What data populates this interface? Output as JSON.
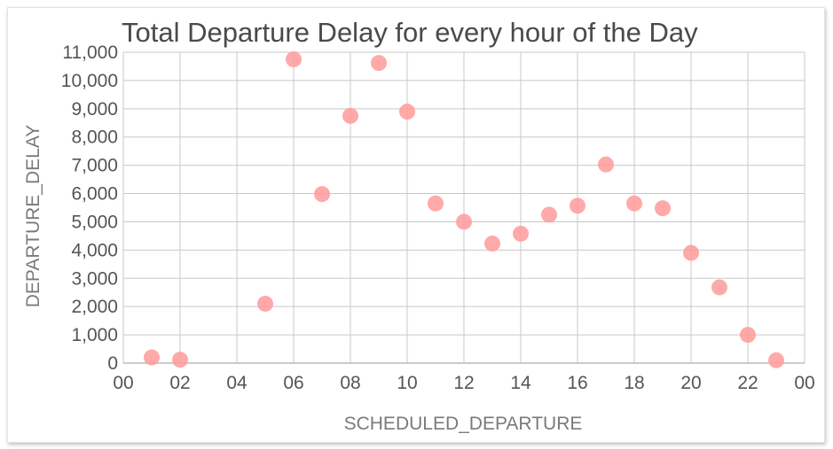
{
  "chart_data": {
    "type": "scatter",
    "title": "Total Departure Delay for every hour of the Day",
    "xlabel": "SCHEDULED_DEPARTURE",
    "ylabel": "DEPARTURE_DELAY",
    "xlim": [
      0,
      24
    ],
    "ylim": [
      0,
      11000
    ],
    "x_ticks": [
      "00",
      "02",
      "04",
      "06",
      "08",
      "10",
      "12",
      "14",
      "16",
      "18",
      "20",
      "22",
      "00"
    ],
    "y_ticks": [
      "0",
      "1,000",
      "2,000",
      "3,000",
      "4,000",
      "5,000",
      "6,000",
      "7,000",
      "8,000",
      "9,000",
      "10,000",
      "11,000"
    ],
    "grid": true,
    "marker_color": "#ff9a9a",
    "points": [
      {
        "x": 1,
        "y": 200
      },
      {
        "x": 2,
        "y": 120
      },
      {
        "x": 5,
        "y": 2100
      },
      {
        "x": 6,
        "y": 10750
      },
      {
        "x": 7,
        "y": 5980
      },
      {
        "x": 8,
        "y": 8750
      },
      {
        "x": 9,
        "y": 10620
      },
      {
        "x": 10,
        "y": 8900
      },
      {
        "x": 11,
        "y": 5650
      },
      {
        "x": 12,
        "y": 5000
      },
      {
        "x": 13,
        "y": 4230
      },
      {
        "x": 14,
        "y": 4580
      },
      {
        "x": 15,
        "y": 5250
      },
      {
        "x": 16,
        "y": 5570
      },
      {
        "x": 17,
        "y": 7030
      },
      {
        "x": 18,
        "y": 5650
      },
      {
        "x": 19,
        "y": 5480
      },
      {
        "x": 20,
        "y": 3900
      },
      {
        "x": 21,
        "y": 2680
      },
      {
        "x": 22,
        "y": 1000
      },
      {
        "x": 23,
        "y": 100
      }
    ]
  }
}
